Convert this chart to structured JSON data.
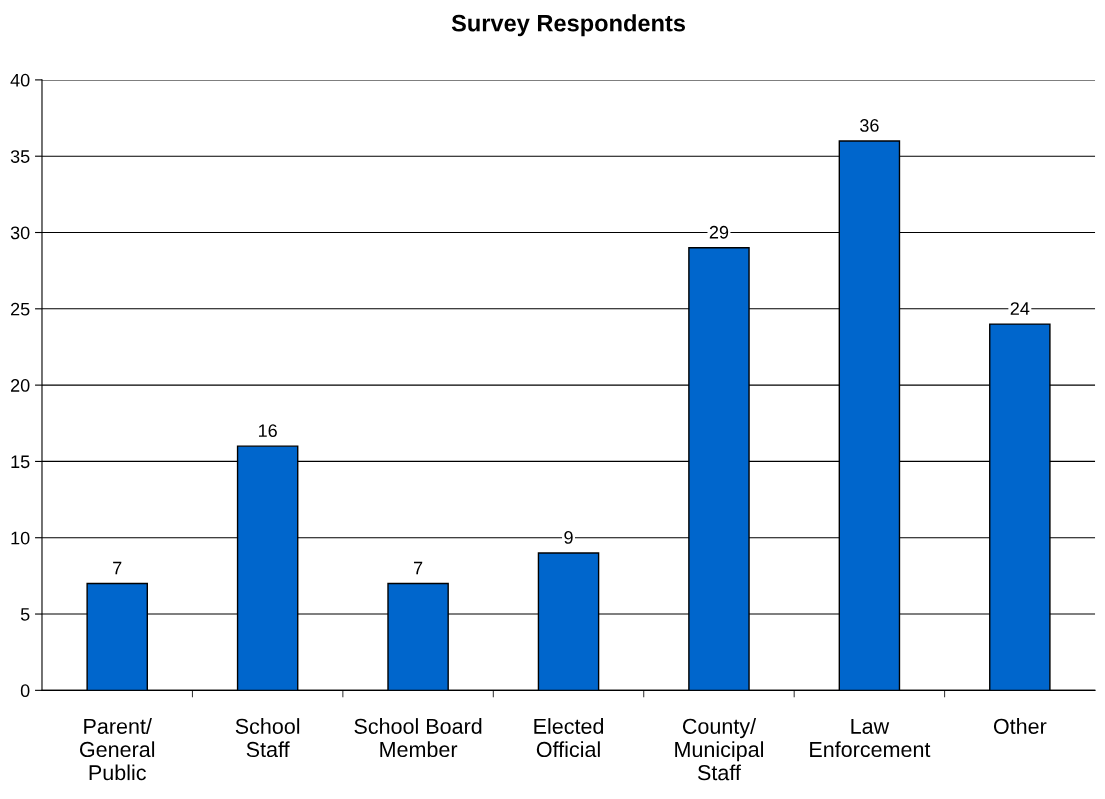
{
  "chart_data": {
    "type": "bar",
    "title": "Survey Respondents",
    "categories": [
      "Parent/\nGeneral\nPublic",
      "School\nStaff",
      "School Board\nMember",
      "Elected\nOfficial",
      "County/\nMunicipal\nStaff",
      "Law\nEnforcement",
      "Other"
    ],
    "values": [
      7,
      16,
      7,
      9,
      29,
      36,
      24
    ],
    "color": "#0066cc",
    "ylim": [
      0,
      40
    ],
    "yticks": [
      0,
      5,
      10,
      15,
      20,
      25,
      30,
      35,
      40
    ],
    "grid": "y",
    "data_labels": true
  }
}
